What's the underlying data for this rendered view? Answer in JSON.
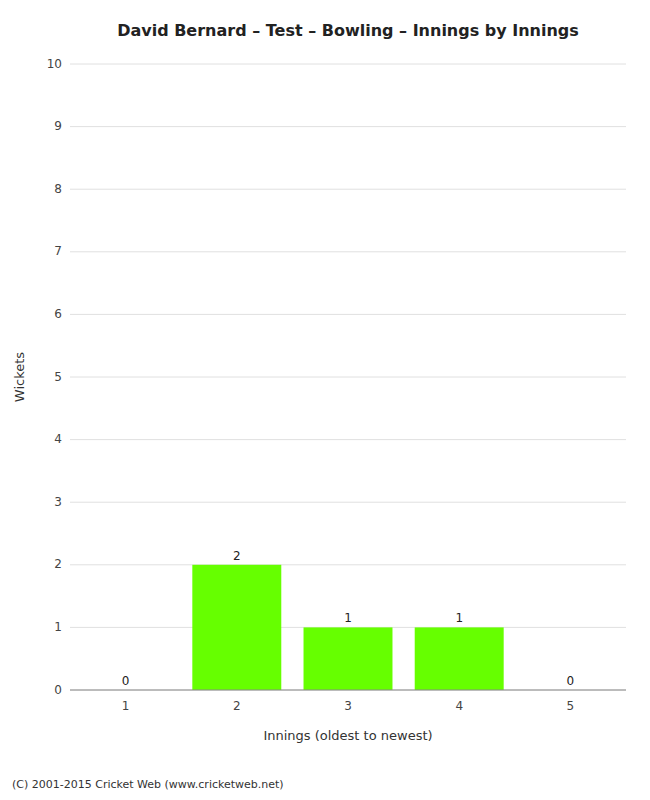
{
  "chart_data": {
    "type": "bar",
    "title": "David Bernard – Test – Bowling – Innings by Innings",
    "xlabel": "Innings (oldest to newest)",
    "ylabel": "Wickets",
    "categories": [
      1,
      2,
      3,
      4,
      5
    ],
    "values": [
      0,
      2,
      1,
      1,
      0
    ],
    "color": "#66ff00",
    "ylim": [
      0,
      10
    ],
    "yticks": [
      0,
      1,
      2,
      3,
      4,
      5,
      6,
      7,
      8,
      9,
      10
    ],
    "grid": true,
    "data_labels": true,
    "annotations": [
      "(C) 2001-2015 Cricket Web (www.cricketweb.net)"
    ]
  }
}
